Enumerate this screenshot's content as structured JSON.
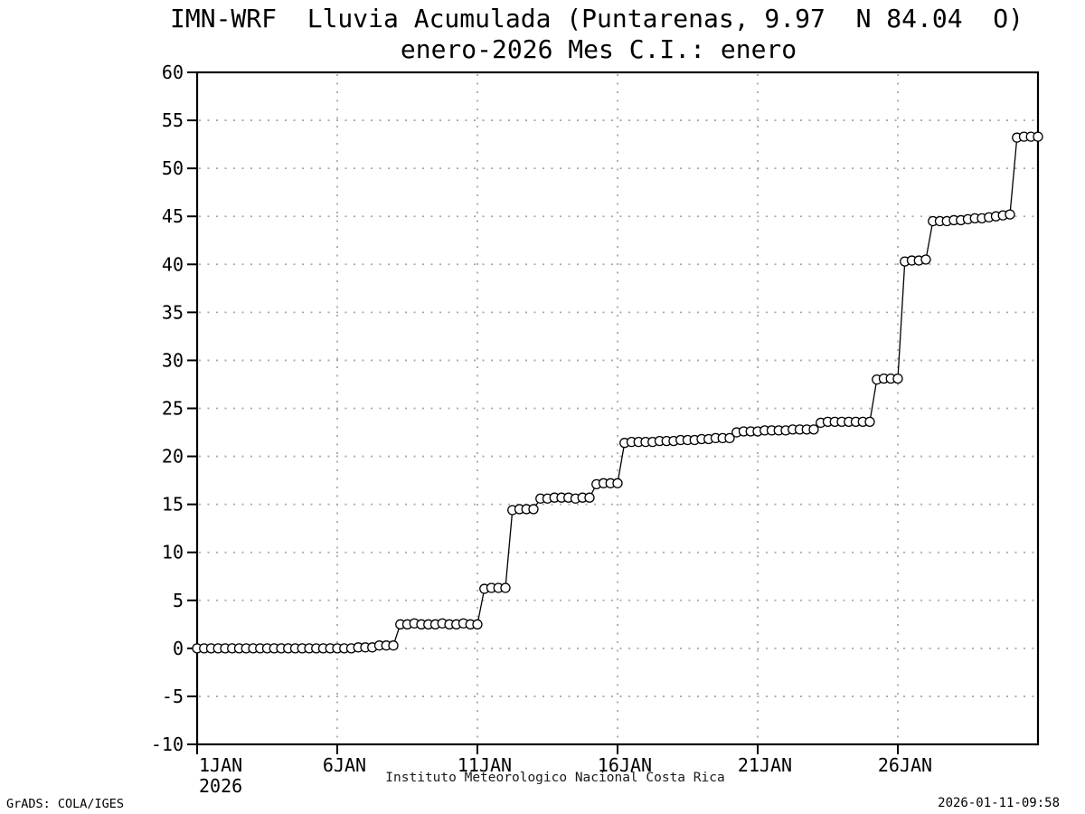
{
  "page": {
    "background": "#ffffff",
    "foreground": "#000000",
    "grid_color": "#a8a8a8",
    "marker_fill": "#ffffff"
  },
  "footer": {
    "credit": "GrADS: COLA/IGES",
    "timestamp": "2026-01-11-09:58"
  },
  "chart_data": {
    "type": "line",
    "title": "IMN-WRF  Lluvia Acumulada (Puntarenas, 9.97  N 84.04  O)",
    "subtitle": "enero-2026 Mes C.I.: enero",
    "xlabel": "Instituto Meteorologico Nacional Costa Rica",
    "ylabel": "",
    "ylim": [
      -10,
      60
    ],
    "y_tick_step": 5,
    "x_start_day": 1,
    "x_end_day": 31,
    "points_per_day": 4,
    "time_step_hours": 6,
    "grid": true,
    "marker": "open-circle",
    "x_ticks": [
      {
        "day": 1,
        "label": "1JAN",
        "sublabel": "2026"
      },
      {
        "day": 6,
        "label": "6JAN"
      },
      {
        "day": 11,
        "label": "11JAN"
      },
      {
        "day": 16,
        "label": "16JAN"
      },
      {
        "day": 21,
        "label": "21JAN"
      },
      {
        "day": 26,
        "label": "26JAN"
      }
    ],
    "series": [
      {
        "name": "Lluvia acumulada (mm)",
        "start": "1JAN2026 00Z",
        "values": [
          0.0,
          0.0,
          0.0,
          0.0,
          0.0,
          0.0,
          0.0,
          0.0,
          0.0,
          0.0,
          0.0,
          0.0,
          0.0,
          0.0,
          0.0,
          0.0,
          0.0,
          0.0,
          0.0,
          0.0,
          0.0,
          0.0,
          0.0,
          0.1,
          0.1,
          0.1,
          0.3,
          0.3,
          0.3,
          2.5,
          2.5,
          2.6,
          2.5,
          2.5,
          2.5,
          2.6,
          2.5,
          2.5,
          2.6,
          2.5,
          2.5,
          6.2,
          6.3,
          6.3,
          6.3,
          14.4,
          14.5,
          14.5,
          14.5,
          15.6,
          15.6,
          15.7,
          15.7,
          15.7,
          15.6,
          15.7,
          15.7,
          17.1,
          17.2,
          17.2,
          17.2,
          21.4,
          21.5,
          21.5,
          21.5,
          21.5,
          21.6,
          21.6,
          21.6,
          21.7,
          21.7,
          21.7,
          21.8,
          21.8,
          21.9,
          21.9,
          21.9,
          22.5,
          22.6,
          22.6,
          22.6,
          22.7,
          22.7,
          22.7,
          22.7,
          22.8,
          22.8,
          22.8,
          22.8,
          23.5,
          23.6,
          23.6,
          23.6,
          23.6,
          23.6,
          23.6,
          23.6,
          28.0,
          28.1,
          28.1,
          28.1,
          40.3,
          40.4,
          40.4,
          40.5,
          44.5,
          44.5,
          44.5,
          44.6,
          44.6,
          44.7,
          44.8,
          44.8,
          44.9,
          45.0,
          45.1,
          45.2,
          53.2,
          53.3,
          53.3,
          53.3
        ]
      }
    ]
  }
}
